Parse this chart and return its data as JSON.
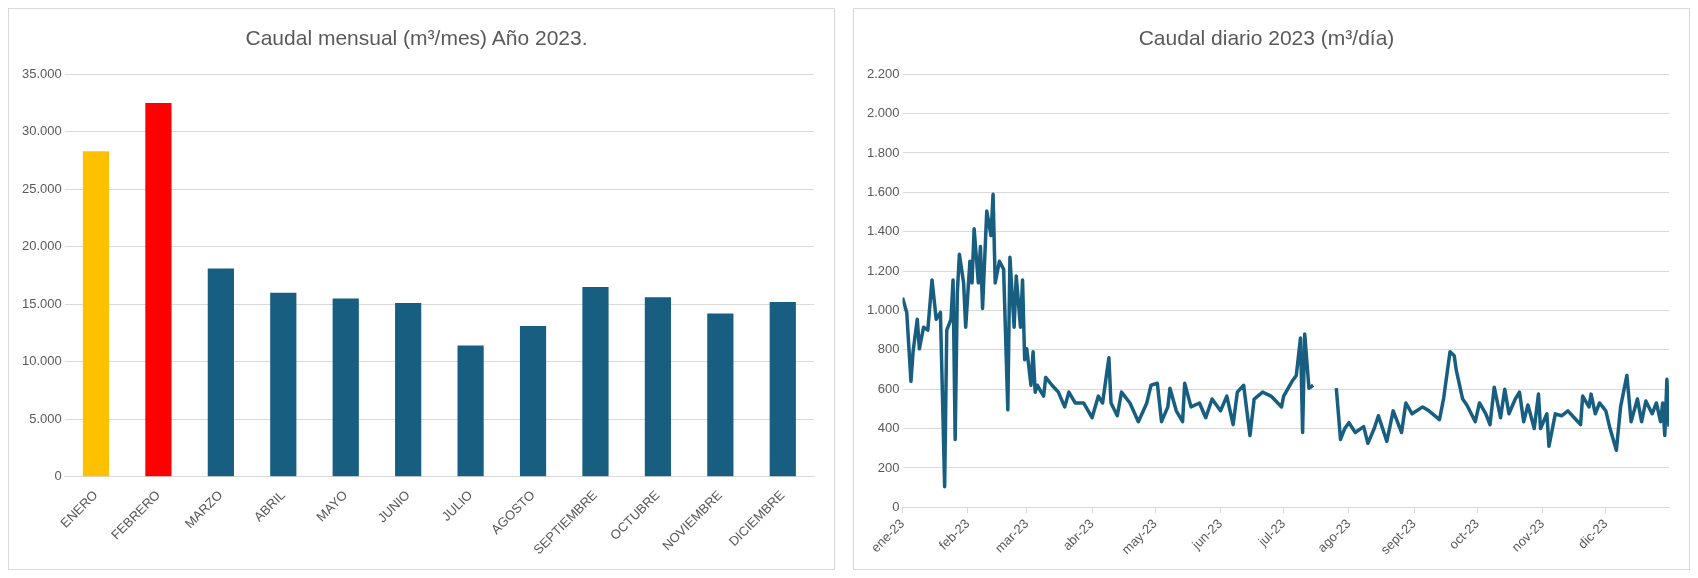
{
  "chart_data": [
    {
      "type": "bar",
      "title": "Caudal mensual (m³/mes) Año 2023.",
      "categories": [
        "ENERO",
        "FEBRERO",
        "MARZO",
        "ABRIL",
        "MAYO",
        "JUNIO",
        "JULIO",
        "AGOSTO",
        "SEPTIEMBRE",
        "OCTUBRE",
        "NOVIEMBRE",
        "DICIEMBRE"
      ],
      "values": [
        28300,
        32500,
        18100,
        16000,
        15500,
        15100,
        11400,
        13100,
        16500,
        15600,
        14200,
        15200
      ],
      "colors": [
        "#ffc000",
        "#ff0000",
        "#175e80",
        "#175e80",
        "#175e80",
        "#175e80",
        "#175e80",
        "#175e80",
        "#175e80",
        "#175e80",
        "#175e80",
        "#175e80"
      ],
      "ylim": [
        0,
        35000
      ],
      "yticks": [
        0,
        {
          "value": 5000,
          "label": "5.000"
        },
        {
          "value": 10000,
          "label": "10.000"
        },
        {
          "value": 15000,
          "label": "15.000"
        },
        {
          "value": 20000,
          "label": "20.000"
        },
        {
          "value": 25000,
          "label": "25.000"
        },
        {
          "value": 30000,
          "label": "30.000"
        },
        {
          "value": 35000,
          "label": "35.000"
        }
      ],
      "grid": "y"
    },
    {
      "type": "line",
      "title": "Caudal diario 2023 (m³/día)",
      "color": "#175e80",
      "x": [
        "2023-01-01",
        "2023-01-03",
        "2023-01-05",
        "2023-01-06",
        "2023-01-08",
        "2023-01-09",
        "2023-01-11",
        "2023-01-13",
        "2023-01-15",
        "2023-01-17",
        "2023-01-19",
        "2023-01-21",
        "2023-01-22",
        "2023-01-24",
        "2023-01-25",
        "2023-01-26",
        "2023-01-27",
        "2023-01-28",
        "2023-01-30",
        "2023-01-31",
        "2023-02-02",
        "2023-02-03",
        "2023-02-04",
        "2023-02-06",
        "2023-02-07",
        "2023-02-08",
        "2023-02-10",
        "2023-02-12",
        "2023-02-13",
        "2023-02-14",
        "2023-02-16",
        "2023-02-18",
        "2023-02-20",
        "2023-02-21",
        "2023-02-23",
        "2023-02-24",
        "2023-02-26",
        "2023-02-27",
        "2023-02-28",
        "2023-03-01",
        "2023-03-03",
        "2023-03-04",
        "2023-03-05",
        "2023-03-06",
        "2023-03-09",
        "2023-03-10",
        "2023-03-13",
        "2023-03-16",
        "2023-03-19",
        "2023-03-21",
        "2023-03-24",
        "2023-03-28",
        "2023-04-01",
        "2023-04-04",
        "2023-04-06",
        "2023-04-09",
        "2023-04-10",
        "2023-04-13",
        "2023-04-15",
        "2023-04-19",
        "2023-04-23",
        "2023-04-27",
        "2023-04-29",
        "2023-05-02",
        "2023-05-04",
        "2023-05-07",
        "2023-05-08",
        "2023-05-11",
        "2023-05-14",
        "2023-05-15",
        "2023-05-18",
        "2023-05-22",
        "2023-05-25",
        "2023-05-28",
        "2023-06-01",
        "2023-06-04",
        "2023-06-07",
        "2023-06-09",
        "2023-06-12",
        "2023-06-15",
        "2023-06-17",
        "2023-06-21",
        "2023-06-25",
        "2023-06-30",
        "2023-07-01",
        "2023-07-05",
        "2023-07-07",
        "2023-07-09",
        "2023-07-10",
        "2023-07-11",
        "2023-07-13",
        "2023-07-15",
        "2023-07-20",
        "2023-07-26",
        "2023-07-28",
        "2023-07-30",
        "2023-08-01",
        "2023-08-04",
        "2023-08-08",
        "2023-08-10",
        "2023-08-13",
        "2023-08-15",
        "2023-08-19",
        "2023-08-22",
        "2023-08-26",
        "2023-08-28",
        "2023-08-31",
        "2023-09-05",
        "2023-09-08",
        "2023-09-13",
        "2023-09-15",
        "2023-09-18",
        "2023-09-20",
        "2023-09-21",
        "2023-09-24",
        "2023-09-26",
        "2023-09-30",
        "2023-10-02",
        "2023-10-05",
        "2023-10-07",
        "2023-10-09",
        "2023-10-12",
        "2023-10-14",
        "2023-10-16",
        "2023-10-19",
        "2023-10-21",
        "2023-10-23",
        "2023-10-25",
        "2023-10-28",
        "2023-10-30",
        "2023-10-31",
        "2023-11-03",
        "2023-11-04",
        "2023-11-07",
        "2023-11-10",
        "2023-11-13",
        "2023-11-16",
        "2023-11-19",
        "2023-11-20",
        "2023-11-23",
        "2023-11-24",
        "2023-11-26",
        "2023-11-28",
        "2023-12-01",
        "2023-12-03",
        "2023-12-06",
        "2023-12-08",
        "2023-12-11",
        "2023-12-13",
        "2023-12-16",
        "2023-12-18",
        "2023-12-20",
        "2023-12-23",
        "2023-12-25",
        "2023-12-27",
        "2023-12-28",
        "2023-12-29",
        "2023-12-30",
        "2023-12-31"
      ],
      "values": [
        1065,
        990,
        640,
        790,
        955,
        805,
        915,
        900,
        1155,
        955,
        990,
        105,
        900,
        955,
        1155,
        345,
        1085,
        1285,
        1140,
        915,
        1250,
        1140,
        1415,
        1140,
        1325,
        1010,
        1505,
        1380,
        1590,
        1140,
        1250,
        1210,
        495,
        1270,
        915,
        1175,
        915,
        1155,
        750,
        805,
        620,
        790,
        585,
        620,
        565,
        660,
        620,
        585,
        510,
        585,
        530,
        530,
        455,
        565,
        530,
        760,
        530,
        465,
        585,
        530,
        435,
        530,
        620,
        630,
        435,
        510,
        605,
        490,
        435,
        630,
        510,
        530,
        455,
        550,
        490,
        565,
        420,
        585,
        620,
        365,
        550,
        585,
        565,
        510,
        565,
        640,
        670,
        860,
        380,
        880,
        605,
        620,
        null,
        605,
        345,
        400,
        430,
        380,
        410,
        325,
        400,
        465,
        335,
        490,
        380,
        530,
        475,
        510,
        490,
        445,
        555,
        790,
        770,
        695,
        550,
        520,
        435,
        530,
        475,
        420,
        610,
        455,
        600,
        475,
        550,
        585,
        435,
        520,
        400,
        575,
        400,
        475,
        310,
        475,
        465,
        490,
        455,
        420,
        565,
        510,
        575,
        475,
        530,
        490,
        400,
        290,
        510,
        670,
        435,
        550,
        435,
        540,
        475,
        530,
        435,
        530,
        365,
        650,
        410
      ],
      "xlim": [
        "2023-01-01",
        "2023-12-31"
      ],
      "xticks": [
        {
          "value": "2023-01-01",
          "label": "ene-23"
        },
        {
          "value": "2023-02-01",
          "label": "feb-23"
        },
        {
          "value": "2023-03-01",
          "label": "mar-23"
        },
        {
          "value": "2023-04-01",
          "label": "abr-23"
        },
        {
          "value": "2023-05-01",
          "label": "may-23"
        },
        {
          "value": "2023-06-01",
          "label": "jun-23"
        },
        {
          "value": "2023-07-01",
          "label": "jul-23"
        },
        {
          "value": "2023-08-01",
          "label": "ago-23"
        },
        {
          "value": "2023-09-01",
          "label": "sept-23"
        },
        {
          "value": "2023-10-01",
          "label": "oct-23"
        },
        {
          "value": "2023-11-01",
          "label": "nov-23"
        },
        {
          "value": "2023-12-01",
          "label": "dic-23"
        }
      ],
      "ylim": [
        0,
        2200
      ],
      "yticks": [
        0,
        200,
        400,
        600,
        800,
        {
          "value": 1000,
          "label": "1.000"
        },
        {
          "value": 1200,
          "label": "1.200"
        },
        {
          "value": 1400,
          "label": "1.400"
        },
        {
          "value": 1600,
          "label": "1.600"
        },
        {
          "value": 1800,
          "label": "1.800"
        },
        {
          "value": 2000,
          "label": "2.000"
        },
        {
          "value": 2200,
          "label": "2.200"
        }
      ],
      "grid": "y"
    }
  ]
}
